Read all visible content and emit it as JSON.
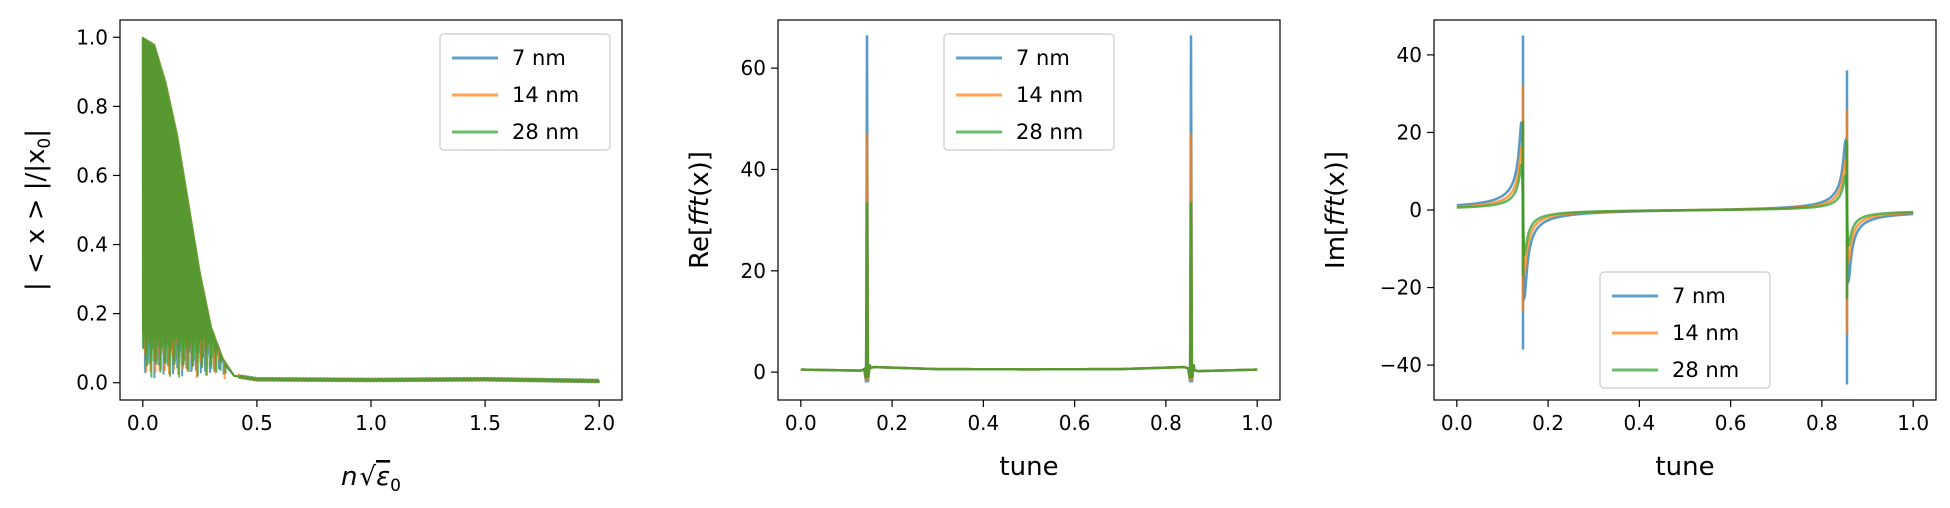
{
  "colors": {
    "blue": "#1f77b4",
    "orange": "#ff7f0e",
    "green": "#2ca02c"
  },
  "chart_data": [
    {
      "id": "panel1",
      "type": "line",
      "xlabel_text": "n",
      "xlabel_sqrt": "ε",
      "xlabel_sub": "0",
      "ylabel_text": "| < x > |/|x",
      "ylabel_sub": "0",
      "ylabel_end": "|",
      "xlim": [
        -0.1,
        2.1
      ],
      "ylim": [
        -0.05,
        1.05
      ],
      "xticks": [
        0.0,
        0.5,
        1.0,
        1.5,
        2.0
      ],
      "xtick_labels": [
        "0.0",
        "0.5",
        "1.0",
        "1.5",
        "2.0"
      ],
      "yticks": [
        0.0,
        0.2,
        0.4,
        0.6,
        0.8,
        1.0
      ],
      "ytick_labels": [
        "0.0",
        "0.2",
        "0.4",
        "0.6",
        "0.8",
        "1.0"
      ],
      "legend": {
        "location": "upper right",
        "labels": [
          "7 nm",
          "14 nm",
          "28 nm"
        ]
      },
      "series": [
        {
          "name": "7 nm",
          "color": "blue",
          "envelope": [
            [
              0.0,
              1.0
            ],
            [
              0.05,
              0.97
            ],
            [
              0.1,
              0.85
            ],
            [
              0.15,
              0.7
            ],
            [
              0.2,
              0.5
            ],
            [
              0.25,
              0.3
            ],
            [
              0.3,
              0.15
            ],
            [
              0.35,
              0.06
            ],
            [
              0.4,
              0.02
            ],
            [
              0.5,
              0.01
            ],
            [
              1.0,
              0.008
            ],
            [
              1.5,
              0.01
            ],
            [
              2.0,
              0.005
            ]
          ]
        },
        {
          "name": "14 nm",
          "color": "orange",
          "envelope": [
            [
              0.0,
              1.0
            ],
            [
              0.05,
              0.98
            ],
            [
              0.1,
              0.87
            ],
            [
              0.15,
              0.72
            ],
            [
              0.2,
              0.52
            ],
            [
              0.25,
              0.32
            ],
            [
              0.3,
              0.16
            ],
            [
              0.35,
              0.07
            ],
            [
              0.4,
              0.02
            ],
            [
              0.5,
              0.01
            ],
            [
              1.0,
              0.008
            ],
            [
              1.5,
              0.01
            ],
            [
              2.0,
              0.005
            ]
          ]
        },
        {
          "name": "28 nm",
          "color": "green",
          "envelope": [
            [
              0.0,
              1.0
            ],
            [
              0.05,
              0.98
            ],
            [
              0.1,
              0.87
            ],
            [
              0.15,
              0.72
            ],
            [
              0.2,
              0.52
            ],
            [
              0.25,
              0.32
            ],
            [
              0.3,
              0.16
            ],
            [
              0.35,
              0.07
            ],
            [
              0.4,
              0.02
            ],
            [
              0.5,
              0.01
            ],
            [
              1.0,
              0.008
            ],
            [
              1.5,
              0.01
            ],
            [
              2.0,
              0.005
            ]
          ]
        }
      ]
    },
    {
      "id": "panel2",
      "type": "line",
      "xlabel": "tune",
      "ylabel_text": "Re[",
      "ylabel_italic": "fft",
      "ylabel_end": "(x)]",
      "xlim": [
        -0.05,
        1.05
      ],
      "ylim": [
        -5.5,
        69.5
      ],
      "xticks": [
        0.0,
        0.2,
        0.4,
        0.6,
        0.8,
        1.0
      ],
      "xtick_labels": [
        "0.0",
        "0.2",
        "0.4",
        "0.6",
        "0.8",
        "1.0"
      ],
      "yticks": [
        0,
        20,
        40,
        60
      ],
      "ytick_labels": [
        "0",
        "20",
        "40",
        "60"
      ],
      "legend": {
        "location": "upper center",
        "labels": [
          "7 nm",
          "14 nm",
          "28 nm"
        ]
      },
      "resonances": [
        0.145,
        0.855
      ],
      "series": [
        {
          "name": "7 nm",
          "color": "blue",
          "peak": 66.5,
          "dip": -2.0
        },
        {
          "name": "14 nm",
          "color": "orange",
          "peak": 47.0,
          "dip": -1.6
        },
        {
          "name": "28 nm",
          "color": "green",
          "peak": 33.5,
          "dip": -1.2
        }
      ],
      "baseline": [
        [
          0.0,
          0.5
        ],
        [
          0.13,
          0.3
        ],
        [
          0.16,
          1.0
        ],
        [
          0.3,
          0.6
        ],
        [
          0.5,
          0.55
        ],
        [
          0.7,
          0.6
        ],
        [
          0.84,
          1.0
        ],
        [
          0.87,
          0.2
        ],
        [
          1.0,
          0.5
        ]
      ]
    },
    {
      "id": "panel3",
      "type": "line",
      "xlabel": "tune",
      "ylabel_text": "Im[",
      "ylabel_italic": "fft",
      "ylabel_end": "(x)]",
      "xlim": [
        -0.05,
        1.05
      ],
      "ylim": [
        -49,
        49
      ],
      "xticks": [
        0.0,
        0.2,
        0.4,
        0.6,
        0.8,
        1.0
      ],
      "xtick_labels": [
        "0.0",
        "0.2",
        "0.4",
        "0.6",
        "0.8",
        "1.0"
      ],
      "yticks": [
        -40,
        -20,
        0,
        20,
        40
      ],
      "ytick_labels": [
        "−40",
        "−20",
        "0",
        "20",
        "40"
      ],
      "legend": {
        "location": "lower center",
        "labels": [
          "7 nm",
          "14 nm",
          "28 nm"
        ]
      },
      "resonances": [
        0.145,
        0.855
      ],
      "series": [
        {
          "name": "7 nm",
          "color": "blue",
          "first": [
            45,
            -36
          ],
          "second": [
            36,
            -45
          ]
        },
        {
          "name": "14 nm",
          "color": "orange",
          "first": [
            32,
            -26
          ],
          "second": [
            26,
            -32
          ]
        },
        {
          "name": "28 nm",
          "color": "green",
          "first": [
            23,
            -17
          ],
          "second": [
            18,
            -23
          ]
        }
      ]
    }
  ]
}
